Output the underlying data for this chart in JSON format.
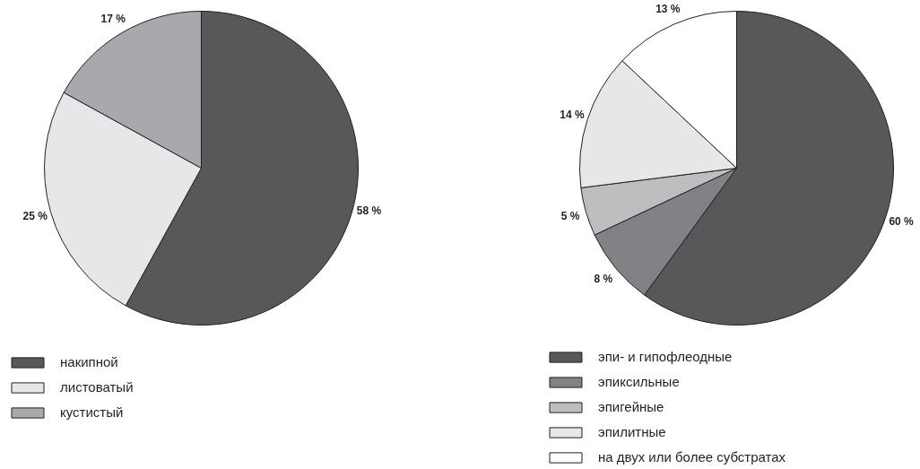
{
  "chart_data": [
    {
      "type": "pie",
      "categories": [
        "накипной",
        "листоватый",
        "кустистый"
      ],
      "values": [
        58,
        25,
        17
      ],
      "colors": [
        "#58585a",
        "#e6e7e8",
        "#a7a9ac"
      ],
      "value_labels": [
        "58 %",
        "25 %",
        "17 %"
      ],
      "legend": "bottom"
    },
    {
      "type": "pie",
      "categories": [
        "эпи- и гипофлеодные",
        "эпиксильные",
        "эпигейные",
        "эпилитные",
        "на двух или более субстратах"
      ],
      "values": [
        60,
        8,
        5,
        14,
        13
      ],
      "colors": [
        "#58585a",
        "#808285",
        "#bcbec0",
        "#e6e7e8",
        "#ffffff"
      ],
      "value_labels": [
        "60 %",
        "8 %",
        "5 %",
        "14 %",
        "13 %"
      ],
      "legend": "bottom"
    }
  ]
}
